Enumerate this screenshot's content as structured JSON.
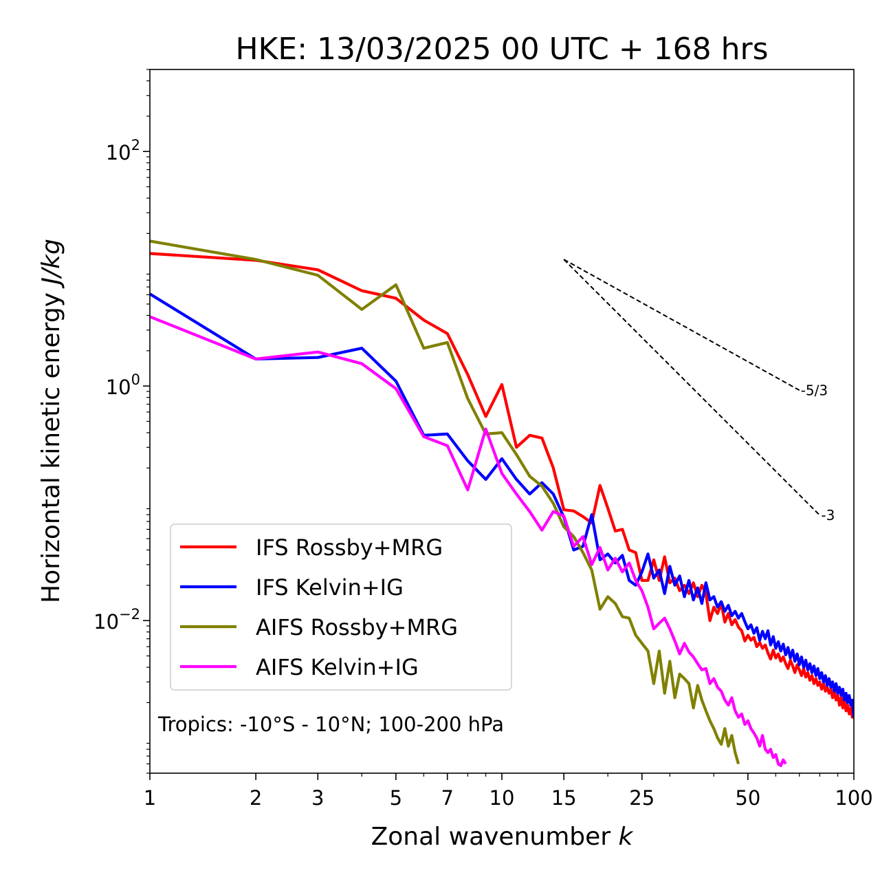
{
  "chart_data": {
    "type": "line",
    "title": "HKE: 13/03/2025 00 UTC + 168 hrs",
    "xlabel": "Zonal wavenumber",
    "xlabel_var": "k",
    "ylabel": "Horizontal kinetic energy",
    "ylabel_unit": "J/kg",
    "xscale": "log",
    "yscale": "log",
    "xlim": [
      1,
      100
    ],
    "ylim": [
      0.0005,
      500
    ],
    "grid": false,
    "legend_position": "lower-left",
    "annotation": "Tropics: -10°S - 10°N; 100-200 hPa",
    "x_ticks": [
      {
        "value": 1,
        "label": "1"
      },
      {
        "value": 2,
        "label": "2"
      },
      {
        "value": 3,
        "label": "3"
      },
      {
        "value": 5,
        "label": "5"
      },
      {
        "value": 7,
        "label": "7"
      },
      {
        "value": 10,
        "label": "10"
      },
      {
        "value": 15,
        "label": "15"
      },
      {
        "value": 25,
        "label": "25"
      },
      {
        "value": 50,
        "label": "50"
      },
      {
        "value": 100,
        "label": "100"
      }
    ],
    "y_ticks": [
      {
        "value": 100,
        "base": "10",
        "exp": "2"
      },
      {
        "value": 1,
        "base": "10",
        "exp": "0"
      },
      {
        "value": 0.01,
        "base": "10",
        "exp": "−2"
      }
    ],
    "reference_slopes": [
      {
        "label": "-5/3",
        "slope": -1.6667,
        "x_start": 15,
        "y_start": 12,
        "x_end": 70
      },
      {
        "label": "-3",
        "slope": -3,
        "x_start": 15,
        "y_start": 12,
        "x_end": 80
      }
    ],
    "series": [
      {
        "name": "IFS Rossby+MRG",
        "color": "#ff0000",
        "x": [
          1,
          2,
          3,
          4,
          5,
          6,
          7,
          8,
          9,
          10,
          11,
          12,
          13,
          14,
          15,
          16,
          17,
          18,
          19,
          20,
          21,
          22,
          23,
          24,
          25,
          26,
          27,
          28,
          29,
          30,
          31,
          32,
          33,
          34,
          35,
          36,
          37,
          38,
          39,
          40,
          41,
          42,
          43,
          44,
          45,
          46,
          47,
          48,
          49,
          50,
          51,
          52,
          53,
          54,
          55,
          56,
          57,
          58,
          59,
          60,
          61,
          62,
          63,
          64,
          65,
          66,
          67,
          68,
          69,
          70,
          71,
          72,
          73,
          74,
          75,
          76,
          77,
          78,
          79,
          80,
          81,
          82,
          83,
          84,
          85,
          86,
          87,
          88,
          89,
          90,
          91,
          92,
          93,
          94,
          95,
          96,
          97,
          98,
          99,
          100
        ],
        "y": [
          13.5,
          11.8,
          9.8,
          6.5,
          5.6,
          3.65,
          2.8,
          1.25,
          0.55,
          1.03,
          0.3,
          0.38,
          0.36,
          0.2,
          0.088,
          0.086,
          0.077,
          0.068,
          0.142,
          0.091,
          0.058,
          0.06,
          0.04,
          0.038,
          0.022,
          0.022,
          0.033,
          0.022,
          0.035,
          0.021,
          0.023,
          0.018,
          0.02,
          0.017,
          0.021,
          0.016,
          0.02,
          0.017,
          0.01,
          0.013,
          0.0115,
          0.014,
          0.0097,
          0.0115,
          0.0092,
          0.0102,
          0.0088,
          0.0082,
          0.0067,
          0.0075,
          0.0068,
          0.0072,
          0.006,
          0.0065,
          0.0058,
          0.0062,
          0.0053,
          0.0047,
          0.0056,
          0.0048,
          0.0052,
          0.0045,
          0.0049,
          0.0043,
          0.0039,
          0.0046,
          0.0041,
          0.0036,
          0.0042,
          0.0038,
          0.0034,
          0.0039,
          0.0033,
          0.0036,
          0.0031,
          0.0034,
          0.0029,
          0.0032,
          0.0028,
          0.003,
          0.0026,
          0.0029,
          0.0025,
          0.0027,
          0.0024,
          0.0026,
          0.0022,
          0.0025,
          0.0021,
          0.0023,
          0.0019,
          0.0022,
          0.0018,
          0.0021,
          0.0017,
          0.0019,
          0.0016,
          0.0018,
          0.0015,
          0.0015
        ]
      },
      {
        "name": "IFS Kelvin+IG",
        "color": "#0000ff",
        "x": [
          1,
          2,
          3,
          4,
          5,
          6,
          7,
          8,
          9,
          10,
          11,
          12,
          13,
          14,
          15,
          16,
          17,
          18,
          19,
          20,
          21,
          22,
          23,
          24,
          25,
          26,
          27,
          28,
          29,
          30,
          31,
          32,
          33,
          34,
          35,
          36,
          37,
          38,
          39,
          40,
          41,
          42,
          43,
          44,
          45,
          46,
          47,
          48,
          49,
          50,
          51,
          52,
          53,
          54,
          55,
          56,
          57,
          58,
          59,
          60,
          61,
          62,
          63,
          64,
          65,
          66,
          67,
          68,
          69,
          70,
          71,
          72,
          73,
          74,
          75,
          76,
          77,
          78,
          79,
          80,
          81,
          82,
          83,
          84,
          85,
          86,
          87,
          88,
          89,
          90,
          91,
          92,
          93,
          94,
          95,
          96,
          97,
          98,
          99,
          100
        ],
        "y": [
          6.1,
          1.7,
          1.75,
          2.1,
          1.1,
          0.38,
          0.39,
          0.23,
          0.16,
          0.24,
          0.16,
          0.12,
          0.15,
          0.12,
          0.076,
          0.04,
          0.043,
          0.08,
          0.033,
          0.037,
          0.031,
          0.036,
          0.022,
          0.02,
          0.026,
          0.037,
          0.023,
          0.027,
          0.017,
          0.029,
          0.02,
          0.024,
          0.016,
          0.022,
          0.015,
          0.019,
          0.014,
          0.021,
          0.015,
          0.016,
          0.013,
          0.0145,
          0.012,
          0.0135,
          0.011,
          0.012,
          0.0105,
          0.0115,
          0.0098,
          0.0085,
          0.0092,
          0.0078,
          0.0087,
          0.0068,
          0.0081,
          0.007,
          0.0082,
          0.0062,
          0.0073,
          0.0058,
          0.0066,
          0.0055,
          0.0063,
          0.0051,
          0.0059,
          0.0048,
          0.0056,
          0.0045,
          0.0052,
          0.0042,
          0.0049,
          0.004,
          0.0046,
          0.0038,
          0.0043,
          0.0036,
          0.0041,
          0.0034,
          0.0039,
          0.0032,
          0.0036,
          0.003,
          0.0034,
          0.0028,
          0.0032,
          0.0027,
          0.003,
          0.0025,
          0.0029,
          0.0024,
          0.0027,
          0.0023,
          0.0026,
          0.0021,
          0.0024,
          0.002,
          0.0023,
          0.0019,
          0.0021,
          0.0015
        ]
      },
      {
        "name": "AIFS Rossby+MRG",
        "color": "#808000",
        "x": [
          1,
          2,
          3,
          4,
          5,
          6,
          7,
          8,
          9,
          10,
          11,
          12,
          13,
          14,
          15,
          16,
          17,
          18,
          19,
          20,
          21,
          22,
          23,
          24,
          25,
          26,
          27,
          28,
          29,
          30,
          31,
          32,
          33,
          34,
          35,
          36,
          37,
          38,
          39,
          40,
          41,
          42,
          43,
          44,
          45,
          46,
          47
        ],
        "y": [
          17.2,
          12.0,
          8.8,
          4.5,
          7.3,
          2.1,
          2.35,
          0.78,
          0.39,
          0.4,
          0.26,
          0.17,
          0.14,
          0.1,
          0.063,
          0.052,
          0.038,
          0.027,
          0.0125,
          0.016,
          0.014,
          0.0108,
          0.0105,
          0.0075,
          0.0064,
          0.0055,
          0.0029,
          0.0055,
          0.0024,
          0.0045,
          0.0022,
          0.0035,
          0.0032,
          0.0029,
          0.0018,
          0.0028,
          0.0021,
          0.0017,
          0.0014,
          0.0012,
          0.001,
          0.00088,
          0.0012,
          0.00085,
          0.00105,
          0.00075,
          0.0006
        ]
      },
      {
        "name": "AIFS Kelvin+IG",
        "color": "#ff00ff",
        "x": [
          1,
          2,
          3,
          4,
          5,
          6,
          7,
          8,
          9,
          10,
          11,
          12,
          13,
          14,
          15,
          16,
          17,
          18,
          19,
          20,
          21,
          22,
          23,
          24,
          25,
          26,
          27,
          28,
          29,
          30,
          31,
          32,
          33,
          34,
          35,
          36,
          37,
          38,
          39,
          40,
          41,
          42,
          43,
          44,
          45,
          46,
          47,
          48,
          49,
          50,
          51,
          52,
          53,
          54,
          55,
          56,
          57,
          58,
          59,
          60,
          61,
          62,
          63,
          64
        ],
        "y": [
          3.9,
          1.7,
          1.95,
          1.55,
          0.95,
          0.37,
          0.31,
          0.13,
          0.43,
          0.18,
          0.12,
          0.085,
          0.059,
          0.085,
          0.078,
          0.043,
          0.052,
          0.03,
          0.042,
          0.027,
          0.034,
          0.026,
          0.031,
          0.022,
          0.018,
          0.013,
          0.0085,
          0.0095,
          0.0105,
          0.0085,
          0.0067,
          0.0052,
          0.0064,
          0.0054,
          0.0049,
          0.0043,
          0.0038,
          0.0039,
          0.0029,
          0.0032,
          0.0027,
          0.0025,
          0.0021,
          0.0019,
          0.0022,
          0.0017,
          0.0015,
          0.0016,
          0.0013,
          0.0014,
          0.0012,
          0.0011,
          0.001,
          0.00085,
          0.00105,
          0.0008,
          0.00075,
          0.0008,
          0.00068,
          0.00072,
          0.0006,
          0.00058,
          0.00065,
          0.0006
        ]
      }
    ]
  }
}
